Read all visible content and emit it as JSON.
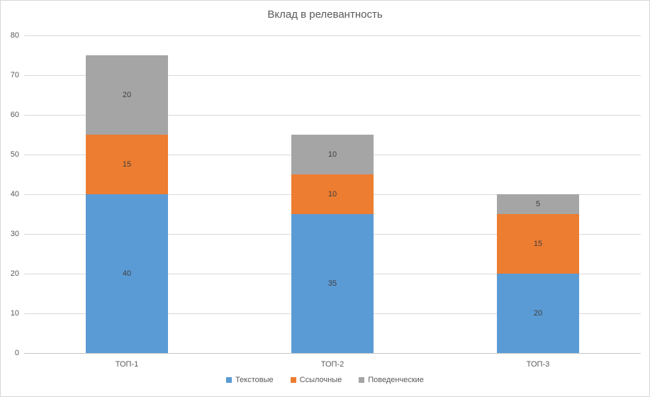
{
  "chart_data": {
    "type": "bar",
    "stacked": true,
    "title": "Вклад в релевантность",
    "categories": [
      "ТОП-1",
      "ТОП-2",
      "ТОП-3"
    ],
    "series": [
      {
        "name": "Текстовые",
        "color": "#5B9BD5",
        "values": [
          40,
          35,
          20
        ]
      },
      {
        "name": "Ссылочные",
        "color": "#ED7D31",
        "values": [
          15,
          10,
          15
        ]
      },
      {
        "name": "Поведенческие",
        "color": "#A5A5A5",
        "values": [
          20,
          10,
          5
        ]
      }
    ],
    "totals": [
      75,
      55,
      40
    ],
    "xlabel": "",
    "ylabel": "",
    "ylim": [
      0,
      80
    ],
    "y_ticks": [
      0,
      10,
      20,
      30,
      40,
      50,
      60,
      70,
      80
    ],
    "grid": true,
    "legend_position": "bottom"
  },
  "colors": {
    "title_text": "#595959",
    "axis_text": "#595959",
    "data_label_text": "#404040",
    "gridline": "#D9D9D9",
    "axis_line": "#C6C6C6",
    "chart_border": "#D7D7D7",
    "background": "#FFFFFF"
  }
}
